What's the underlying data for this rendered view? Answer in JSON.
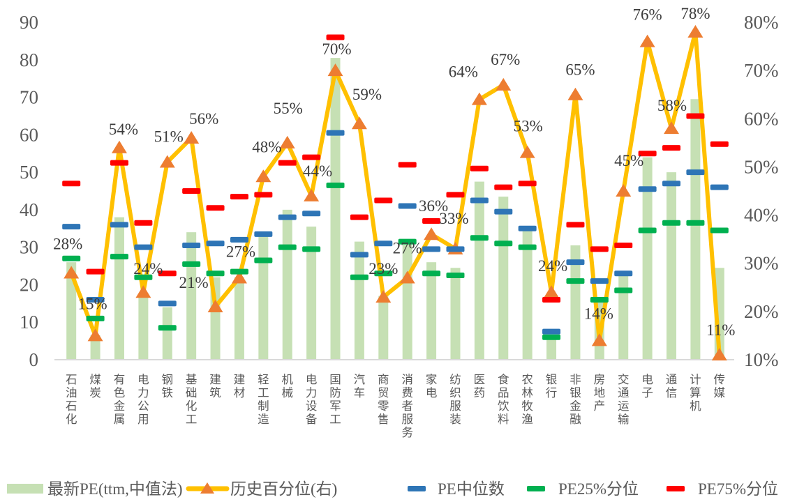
{
  "chart_data": {
    "type": "bar",
    "subtype": "combo-bar-line-dashmarkers",
    "title": "",
    "grid": false,
    "legend_position": "bottom",
    "categories": [
      "石油石化",
      "煤炭",
      "有色金属",
      "电力公用",
      "钢铁",
      "基础化工",
      "建筑",
      "建材",
      "轻工制造",
      "机械",
      "电力设备",
      "国防军工",
      "汽车",
      "商贸零售",
      "消费者服务",
      "家电",
      "纺织服装",
      "医药",
      "食品饮料",
      "农林牧渔",
      "银行",
      "非银金融",
      "房地产",
      "交通运输",
      "电子",
      "通信",
      "计算机",
      "传媒"
    ],
    "left_axis": {
      "min": 0,
      "max": 90,
      "ticks": [
        0,
        10,
        20,
        30,
        40,
        50,
        60,
        70,
        80,
        90
      ]
    },
    "right_axis": {
      "min": 10,
      "max": 80,
      "ticks": [
        "10%",
        "20%",
        "30%",
        "40%",
        "50%",
        "60%",
        "70%",
        "80%"
      ]
    },
    "series": [
      {
        "name": "最新PE(ttm,中值法)",
        "type": "bar",
        "axis": "left",
        "color": "#C6E0B4",
        "values": [
          26,
          6.5,
          38,
          17,
          14,
          34,
          22,
          22,
          33.5,
          40,
          35.5,
          80.5,
          31.5,
          17,
          32,
          26,
          24.5,
          47.5,
          43.5,
          35.5,
          5.5,
          30.5,
          15.5,
          22.5,
          54,
          50,
          69.5,
          24.5
        ]
      },
      {
        "name": "历史百分位(右)",
        "type": "line",
        "axis": "right",
        "color": "#FFC000",
        "marker": "triangle",
        "marker_color": "#ED7D31",
        "values": [
          28,
          15,
          54,
          24,
          51,
          56,
          21,
          27,
          48,
          55,
          44,
          70,
          59,
          23,
          27,
          36,
          33,
          64,
          67,
          53,
          24,
          65,
          14,
          45,
          76,
          58,
          78,
          11
        ],
        "labels": [
          "28%",
          "15%",
          "54%",
          "24%",
          "51%",
          "56%",
          "21%",
          "27%",
          "48%",
          "55%",
          "44%",
          "70%",
          "59%",
          "23%",
          "27%",
          "36%",
          "33%",
          "64%",
          "67%",
          "53%",
          "24%",
          "65%",
          "14%",
          "45%",
          "76%",
          "58%",
          "78%",
          "11%"
        ]
      },
      {
        "name": "PE中位数",
        "type": "dash",
        "axis": "left",
        "color": "#2E75B6",
        "values": [
          35.5,
          16,
          36,
          30,
          15,
          30.5,
          31,
          32,
          33.5,
          38,
          39,
          60.5,
          28,
          31,
          41,
          29.5,
          29.5,
          42.5,
          39.5,
          35,
          7.5,
          26,
          21,
          23,
          45.5,
          47,
          50,
          46
        ]
      },
      {
        "name": "PE25%分位",
        "type": "dash",
        "axis": "left",
        "color": "#00B050",
        "values": [
          27,
          11,
          27.5,
          22,
          8.5,
          25.5,
          23,
          23.5,
          26.5,
          30,
          29.5,
          46.5,
          22,
          23,
          31.5,
          23,
          22.5,
          32.5,
          31,
          30,
          6,
          21,
          16,
          18.5,
          34.5,
          36.5,
          36.5,
          34.5
        ]
      },
      {
        "name": "PE75%分位",
        "type": "dash",
        "axis": "left",
        "color": "#FF0000",
        "values": [
          47,
          23.5,
          52.5,
          36.5,
          23,
          45,
          40.5,
          43.5,
          44,
          52.5,
          54,
          86,
          38,
          42.5,
          52,
          37,
          44,
          51,
          46,
          47,
          16,
          36,
          29.5,
          30.5,
          55,
          56.5,
          65,
          57.5
        ]
      }
    ],
    "colors": {
      "axis_text": "#595959",
      "data_label_text": "#3b3b3b",
      "category_text": "#595959",
      "axis_line": "#d9d9d9",
      "legend_text": "#595959"
    }
  }
}
